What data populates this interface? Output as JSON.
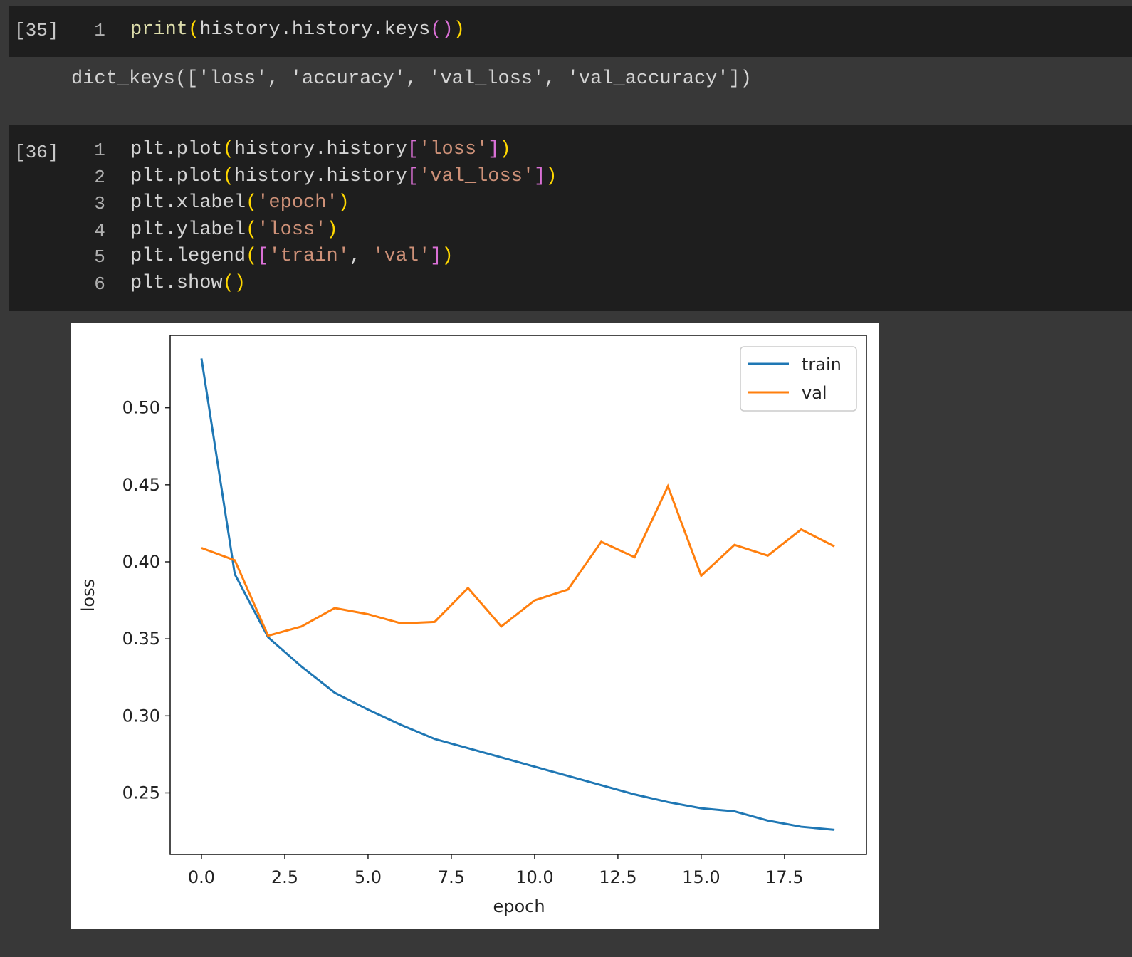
{
  "cells": [
    {
      "label": "[35]",
      "line_numbers": [
        "1"
      ],
      "lines": [
        "print(history.history.keys())"
      ],
      "output": "dict_keys(['loss', 'accuracy', 'val_loss', 'val_accuracy'])"
    },
    {
      "label": "[36]",
      "line_numbers": [
        "1",
        "2",
        "3",
        "4",
        "5",
        "6"
      ],
      "lines": [
        "plt.plot(history.history['loss'])",
        "plt.plot(history.history['val_loss'])",
        "plt.xlabel('epoch')",
        "plt.ylabel('loss')",
        "plt.legend(['train', 'val'])",
        "plt.show()"
      ]
    }
  ],
  "chart_data": {
    "type": "line",
    "xlabel": "epoch",
    "ylabel": "loss",
    "x": [
      0,
      1,
      2,
      3,
      4,
      5,
      6,
      7,
      8,
      9,
      10,
      11,
      12,
      13,
      14,
      15,
      16,
      17,
      18,
      19
    ],
    "series": [
      {
        "name": "train",
        "color": "#1f77b4",
        "values": [
          0.532,
          0.392,
          0.351,
          0.332,
          0.315,
          0.304,
          0.294,
          0.285,
          0.279,
          0.273,
          0.267,
          0.261,
          0.255,
          0.249,
          0.244,
          0.24,
          0.238,
          0.232,
          0.228,
          0.226
        ]
      },
      {
        "name": "val",
        "color": "#ff7f0e",
        "values": [
          0.409,
          0.401,
          0.352,
          0.358,
          0.37,
          0.366,
          0.36,
          0.361,
          0.383,
          0.358,
          0.375,
          0.382,
          0.413,
          0.403,
          0.449,
          0.391,
          0.411,
          0.404,
          0.421,
          0.41
        ]
      }
    ],
    "xlim": [
      -0.94,
      19.96
    ],
    "ylim": [
      0.21,
      0.547
    ],
    "xticks": [
      {
        "value": 0,
        "label": "0.0"
      },
      2.5,
      {
        "value": 5,
        "label": "5.0"
      },
      7.5,
      {
        "value": 10,
        "label": "10.0"
      },
      12.5,
      {
        "value": 15,
        "label": "15.0"
      },
      17.5
    ],
    "yticks": [
      0.25,
      {
        "value": 0.3,
        "label": "0.30"
      },
      0.35,
      {
        "value": 0.4,
        "label": "0.40"
      },
      0.45,
      {
        "value": 0.5,
        "label": "0.50"
      }
    ],
    "legend": "upper right"
  }
}
